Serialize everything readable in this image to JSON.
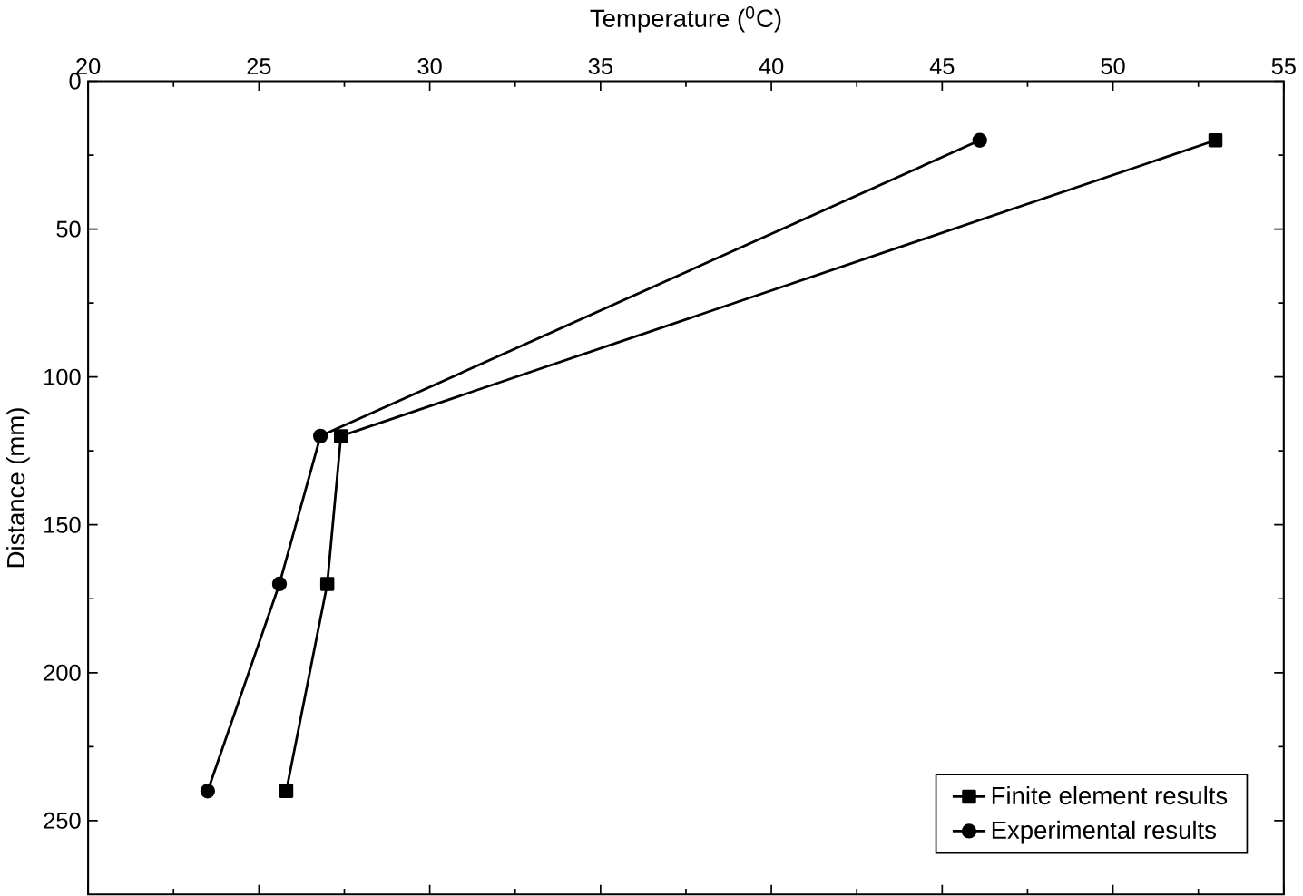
{
  "chart_data": {
    "type": "line",
    "xlabel": "Temperature ($^{0}$C)",
    "ylabel": "Distance (mm)",
    "xlim": [
      20,
      55
    ],
    "xticks": [
      20,
      25,
      30,
      35,
      40,
      45,
      50,
      55
    ],
    "ylim": [
      275,
      0
    ],
    "yticks": [
      0,
      50,
      100,
      150,
      200,
      250
    ],
    "legend": "bottom right",
    "grid": false,
    "line_style": "solid",
    "series": [
      {
        "name": "Finite element results",
        "color": "#000000",
        "marker": "square",
        "x": [
          53.0,
          27.4,
          27.0,
          25.8
        ],
        "values": [
          20,
          120,
          170,
          240
        ]
      },
      {
        "name": "Experimental results",
        "color": "#000000",
        "marker": "circle",
        "x": [
          46.1,
          26.8,
          25.6,
          23.5
        ],
        "values": [
          20,
          120,
          170,
          240
        ]
      }
    ]
  }
}
